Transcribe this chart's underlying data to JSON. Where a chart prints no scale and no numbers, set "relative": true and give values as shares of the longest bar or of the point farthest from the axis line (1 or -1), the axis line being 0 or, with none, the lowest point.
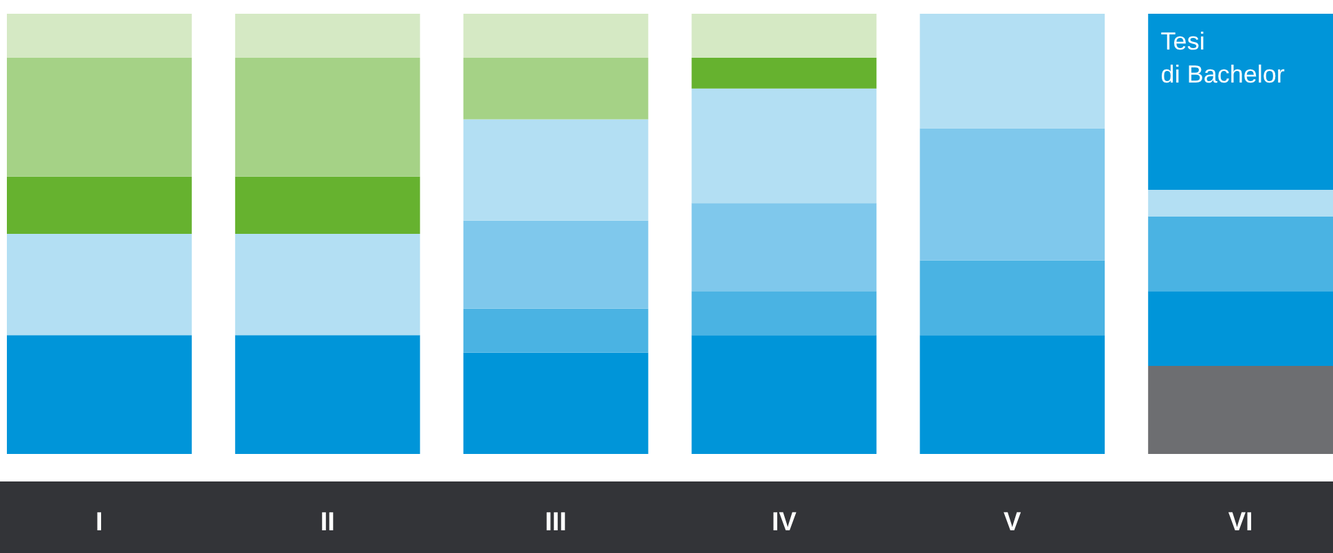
{
  "chart_data": {
    "type": "bar",
    "stacked": true,
    "relative": true,
    "categories": [
      "I",
      "II",
      "III",
      "IV",
      "V",
      "VI"
    ],
    "series": [
      {
        "color": "#6d6e71",
        "values": [
          null,
          null,
          null,
          null,
          null,
          0.2
        ]
      },
      {
        "color": "#0095d9",
        "values": [
          0.27,
          0.27,
          0.23,
          0.27,
          0.27,
          0.17
        ]
      },
      {
        "color": "#4ab3e3",
        "values": [
          null,
          null,
          0.1,
          0.1,
          0.17,
          0.17
        ]
      },
      {
        "color": "#7fc8ec",
        "values": [
          null,
          null,
          0.2,
          0.2,
          0.3,
          null
        ]
      },
      {
        "color": "#b3dff3",
        "values": [
          0.23,
          0.23,
          0.23,
          0.26,
          0.26,
          0.06
        ]
      },
      {
        "color": "#66b22f",
        "values": [
          0.13,
          0.13,
          null,
          0.07,
          null,
          null
        ]
      },
      {
        "color": "#a5d286",
        "values": [
          0.27,
          0.27,
          0.14,
          null,
          null,
          null
        ]
      },
      {
        "color": "#d5e9c4",
        "values": [
          0.1,
          0.1,
          0.1,
          0.1,
          null,
          null
        ]
      },
      {
        "color": "#0095d9",
        "values": [
          null,
          null,
          null,
          null,
          null,
          0.4
        ]
      }
    ],
    "annotations": [
      {
        "text": "Tesi\ndi Bachelor",
        "x": "VI",
        "y": 1
      }
    ]
  }
}
